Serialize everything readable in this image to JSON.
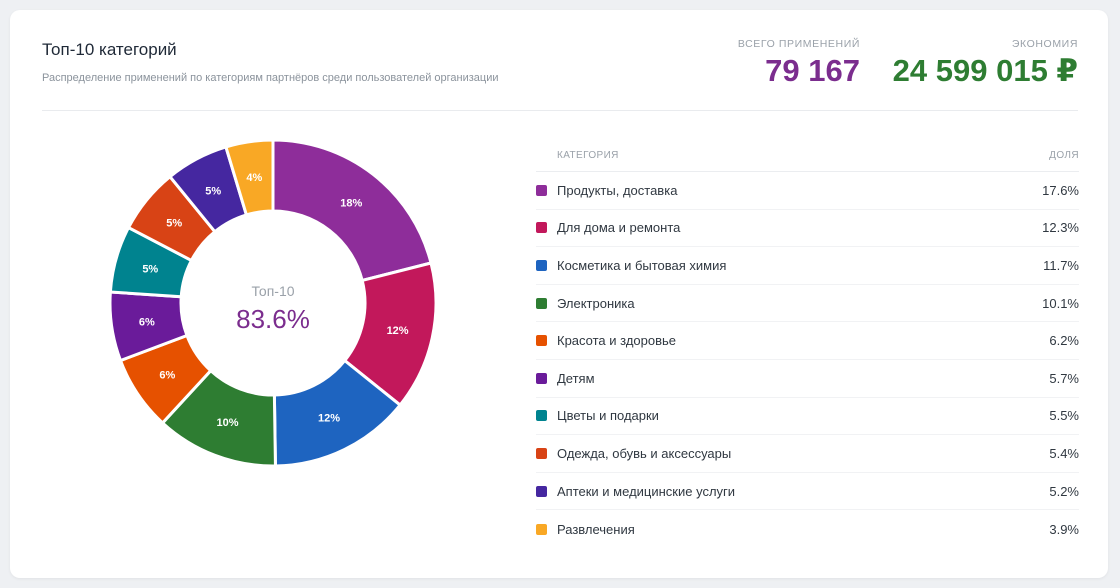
{
  "header": {
    "title": "Топ-10 категорий",
    "subtitle": "Распределение применений по категориям партнёров среди пользователей организации"
  },
  "stats": {
    "applications_label": "ВСЕГО ПРИМЕНЕНИЙ",
    "applications_value": "79 167",
    "savings_label": "ЭКОНОМИЯ",
    "savings_value": "24 599 015 ₽"
  },
  "chart_data": {
    "type": "pie",
    "donut": true,
    "title": "Топ-10 категорий",
    "center_caption": "Топ-10",
    "center_value": "83.6%",
    "column_category": "КАТЕГОРИЯ",
    "column_share": "ДОЛЯ",
    "categories": [
      "Продукты, доставка",
      "Для дома и ремонта",
      "Косметика и бытовая химия",
      "Электроника",
      "Красота и здоровье",
      "Детям",
      "Цветы и подарки",
      "Одежда, обувь и аксессуары",
      "Аптеки и медицинские услуги",
      "Развлечения"
    ],
    "values": [
      17.6,
      12.3,
      11.7,
      10.1,
      6.2,
      5.7,
      5.5,
      5.4,
      5.2,
      3.9
    ],
    "value_labels": [
      "17.6%",
      "12.3%",
      "11.7%",
      "10.1%",
      "6.2%",
      "5.7%",
      "5.5%",
      "5.4%",
      "5.2%",
      "3.9%"
    ],
    "slice_labels": [
      "18%",
      "12%",
      "12%",
      "10%",
      "6%",
      "6%",
      "5%",
      "5%",
      "5%",
      "4%"
    ],
    "colors": [
      "#8e2d9a",
      "#c2185b",
      "#1e64c0",
      "#2e7d32",
      "#e65100",
      "#6a1b9a",
      "#00838f",
      "#d84315",
      "#4527a0",
      "#f9a825"
    ]
  }
}
